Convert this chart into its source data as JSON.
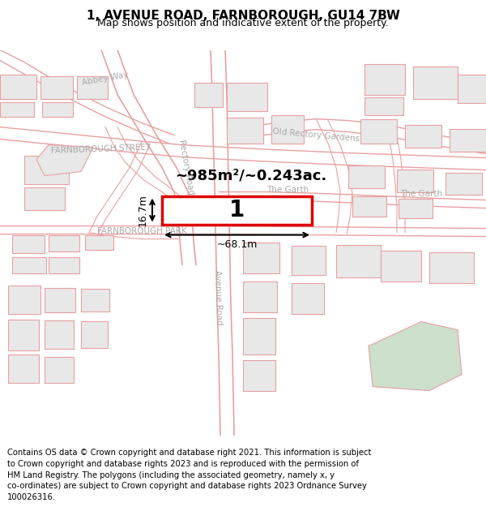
{
  "title": "1, AVENUE ROAD, FARNBOROUGH, GU14 7BW",
  "subtitle": "Map shows position and indicative extent of the property.",
  "footer": "Contains OS data © Crown copyright and database right 2021. This information is subject\nto Crown copyright and database rights 2023 and is reproduced with the permission of\nHM Land Registry. The polygons (including the associated geometry, namely x, y\nco-ordinates) are subject to Crown copyright and database rights 2023 Ordnance Survey\n100026316.",
  "bg_color": "#ffffff",
  "road_line_color": "#e8a0a0",
  "road_label_color": "#888888",
  "building_fill": "#e8e8e8",
  "building_edge": "#e8a0a0",
  "highlight_fill": "#ffffff",
  "highlight_edge": "#dd0000",
  "green_fill": "#cce0cc",
  "area_text": "~985m²/~0.243ac.",
  "label_1": "1",
  "dim_width": "~68.1m",
  "dim_height": "16.7m",
  "title_fontsize": 11,
  "subtitle_fontsize": 9,
  "footer_fontsize": 7.2
}
